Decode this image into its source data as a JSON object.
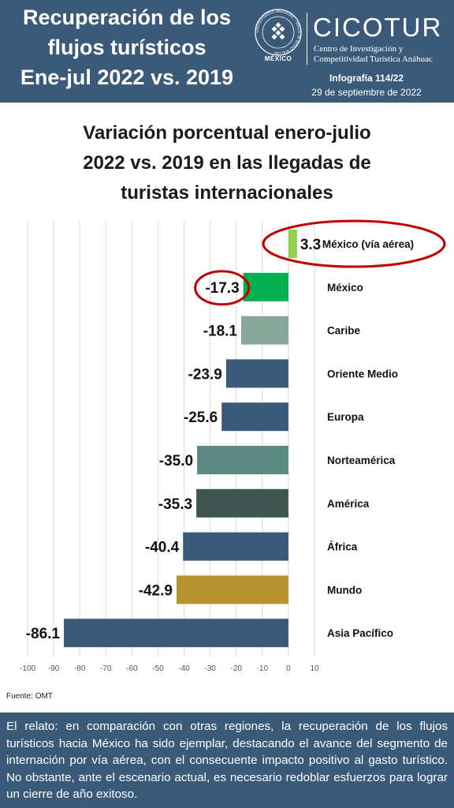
{
  "header": {
    "title_lines": [
      "Recuperación de los",
      "flujos turísticos",
      "Ene-jul 2022 vs. 2019"
    ],
    "logo_ring_text": "UNIVERSIDAD ANÁHUAC · VINCE IN BONO MALUM",
    "logo_label": "MÉXICO",
    "brand_name": "CICOTUR",
    "brand_subtitle_lines": [
      "Centro de Investigación y",
      "Competitividad Turística Anáhuac"
    ],
    "infographic_number": "Infografía 114/22",
    "date": "29 de septiembre de 2022"
  },
  "chart_data": {
    "type": "bar",
    "orientation": "horizontal",
    "title_lines": [
      "Variación porcentual enero-julio",
      "2022 vs. 2019 en las llegadas de",
      "turistas internacionales"
    ],
    "categories": [
      "México (vía aérea)",
      "México",
      "Caribe",
      "Oriente Medio",
      "Europa",
      "Norteamérica",
      "América",
      "África",
      "Mundo",
      "Asia Pacífico"
    ],
    "values": [
      3.3,
      -17.3,
      -18.1,
      -23.9,
      -25.6,
      -35.0,
      -35.3,
      -40.4,
      -42.9,
      -86.1
    ],
    "value_labels": [
      "3.3",
      "-17.3",
      "-18.1",
      "-23.9",
      "-25.6",
      "-35.0",
      "-35.3",
      "-40.4",
      "-42.9",
      "-86.1"
    ],
    "bar_colors": [
      "#92d050",
      "#00b050",
      "#86a79a",
      "#3b5a7a",
      "#3b5a7a",
      "#5b8a80",
      "#3e5650",
      "#3b5a7a",
      "#b8922e",
      "#3b5a7a"
    ],
    "highlighted_categories": [
      "México (vía aérea)",
      "México"
    ],
    "xlim": [
      -100,
      10
    ],
    "xticks": [
      -100,
      -90,
      -80,
      -70,
      -60,
      -50,
      -40,
      -30,
      -20,
      -10,
      0,
      10
    ],
    "tick_labels": [
      "-100",
      "-90",
      "-80",
      "-70",
      "-60",
      "-50",
      "-40",
      "-30",
      "-20",
      "-10",
      "0",
      "10"
    ],
    "grid": "vertical"
  },
  "source": "Fuente: OMT",
  "footer": {
    "text": "El relato: en comparación con otras regiones, la recuperación de los flujos turísticos hacia México ha sido ejemplar, destacando el avance del segmento de internación por vía aérea, con el consecuente impacto positivo al gasto turístico. No obstante, ante el escenario actual, es necesario redoblar esfuerzos para lograr un cierre de año exitoso."
  },
  "colors": {
    "header_bg": "#3b5a7a",
    "highlight_circle": "#c00000",
    "gridline": "#d9d9d9"
  }
}
